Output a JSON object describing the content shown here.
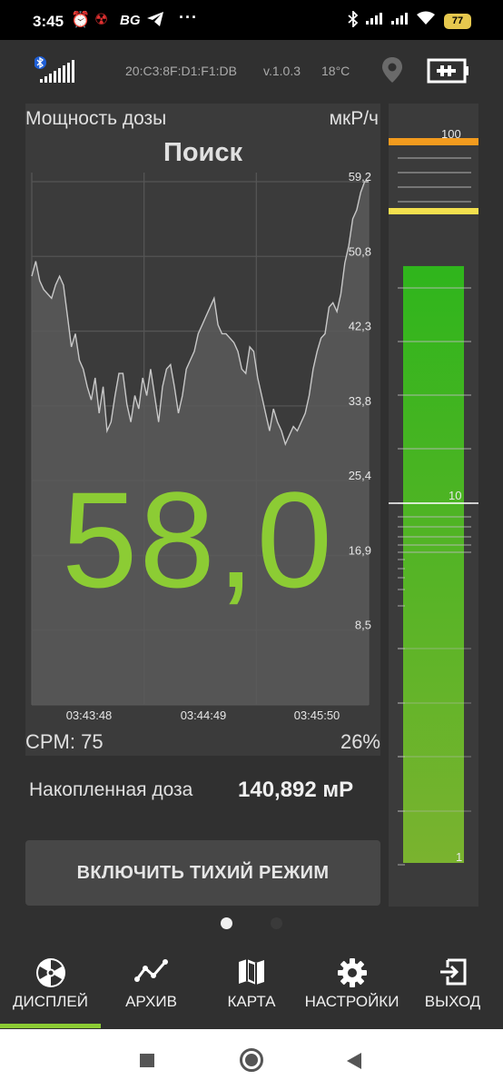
{
  "status_bar": {
    "time": "3:45",
    "carrier": "BG",
    "more": "···",
    "battery": "77"
  },
  "info_bar": {
    "device_address": "20:C3:8F:D1:F1:DB",
    "version": "v.1.0.3",
    "temperature": "18°C"
  },
  "dose_rate": {
    "label": "Мощность дозы",
    "unit": "мкР/ч",
    "mode": "Поиск",
    "value": "58,0",
    "cpm": "CPM: 75",
    "percent": "26%"
  },
  "chart_data": {
    "type": "area",
    "y_ticks": [
      "59,2",
      "50,8",
      "42,3",
      "33,8",
      "25,4",
      "16,9",
      "8,5"
    ],
    "x_ticks": [
      "03:43:48",
      "03:44:49",
      "03:45:50"
    ],
    "ylim": [
      0,
      59.2
    ],
    "grid": true,
    "color": "#9a9a9a",
    "values": [
      48.5,
      50.2,
      48,
      47,
      46.5,
      46,
      47.5,
      48.5,
      47.5,
      44,
      40.5,
      42,
      39,
      38,
      36,
      34.5,
      37,
      33,
      36,
      31,
      32,
      35,
      37.5,
      37.5,
      34,
      32,
      35,
      33.5,
      37,
      35,
      38,
      35,
      32,
      36,
      38,
      38.5,
      36,
      33,
      35,
      38,
      39,
      40,
      42,
      43,
      44,
      45,
      46,
      43,
      42,
      42,
      41.5,
      41,
      40,
      38,
      37.5,
      40.5,
      40,
      37,
      35,
      33,
      31,
      33.5,
      32,
      31,
      29.5,
      30.5,
      31.5,
      31,
      32,
      33,
      35,
      38,
      40,
      41.5,
      42,
      45,
      45.5,
      44.5,
      46.5,
      50,
      52,
      55,
      56,
      58,
      59.2,
      59.2
    ]
  },
  "scale": {
    "top": "100",
    "mid": "10",
    "bottom": "1",
    "bar_fraction": 0.94,
    "colors": {
      "orange": "#f29b1e",
      "yellow": "#f3e04e",
      "green_top": "#2fb51c",
      "green_bottom": "#7ab32f"
    }
  },
  "accumulated": {
    "label": "Накопленная доза",
    "value": "140,892 мР"
  },
  "quiet_button": "ВКЛЮЧИТЬ ТИХИЙ РЕЖИМ",
  "nav": {
    "items": [
      {
        "label": "ДИСПЛЕЙ",
        "icon": "radiation-icon",
        "active": true
      },
      {
        "label": "АРХИВ",
        "icon": "trend-icon"
      },
      {
        "label": "КАРТА",
        "icon": "map-icon"
      },
      {
        "label": "НАСТРОЙКИ",
        "icon": "gear-icon"
      },
      {
        "label": "ВЫХОД",
        "icon": "exit-icon"
      }
    ]
  },
  "accent": "#8ccc34"
}
